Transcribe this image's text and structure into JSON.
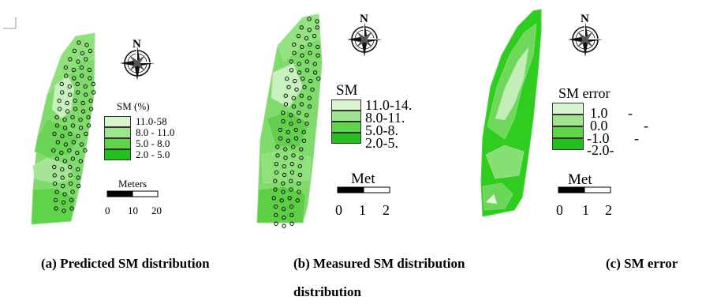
{
  "panels": [
    {
      "caption": "(a) Predicted SM distribution",
      "legend_title": "SM (%)",
      "legend_items": [
        "11.0-58",
        "8.0 - 11.0",
        "5.0 - 8.0",
        "2.0 - 5.0"
      ],
      "scale_label": "Meters",
      "scale_ticks": [
        "0",
        "10",
        "20"
      ],
      "north": "N"
    },
    {
      "caption": "(b) Measured SM distribution",
      "legend_title": "SM",
      "legend_items": [
        "11.0-14.",
        "8.0-11.",
        "5.0-8.",
        "2.0-5."
      ],
      "scale_label": "Met",
      "scale_ticks": [
        "0",
        "1",
        "2"
      ],
      "north": "N"
    },
    {
      "caption": "(c) SM error",
      "caption_cont": "distribution",
      "legend_title": "SM  error",
      "legend_items": [
        "1.0",
        "0.0",
        "-1.0",
        "-2.0-"
      ],
      "legend_dashes": [
        "-",
        "-",
        "-"
      ],
      "scale_label": "Met",
      "scale_ticks": [
        "0",
        "1",
        "2"
      ],
      "north": "N"
    }
  ],
  "colors": {
    "class_1": "#d8f5d0",
    "class_2": "#9ee68e",
    "class_3": "#5fd44a",
    "class_4": "#22c01c",
    "map_base": "#7fdc6a",
    "error_dark": "#2fcd20"
  }
}
